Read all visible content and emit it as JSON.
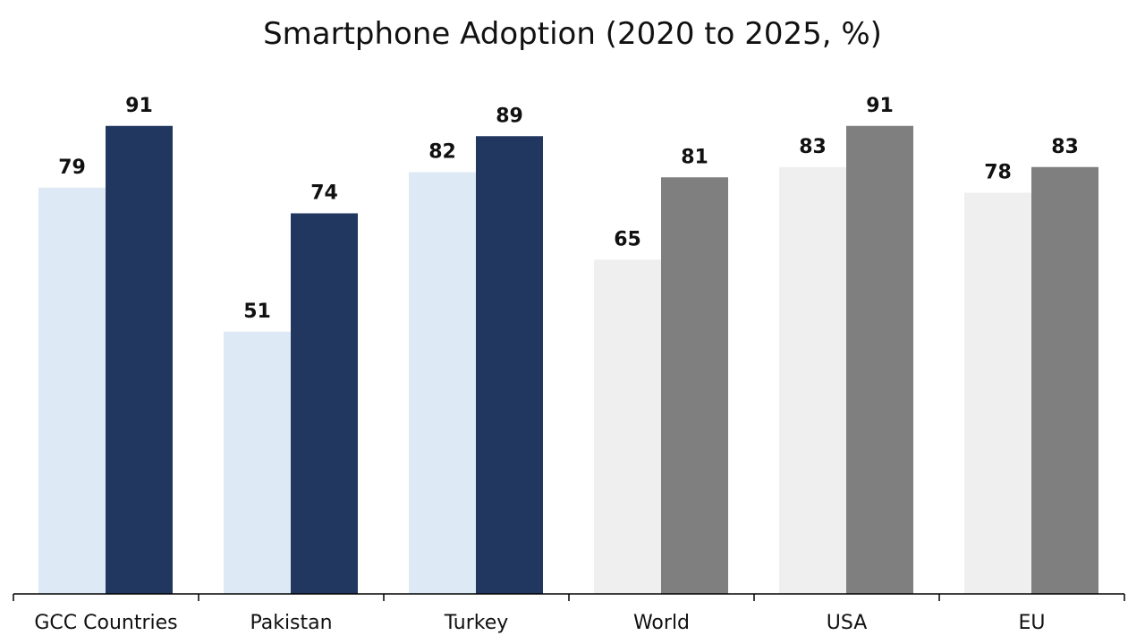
{
  "chart_data": {
    "type": "bar",
    "title": "Smartphone Adoption (2020 to 2025, %)",
    "xlabel": "",
    "ylabel": "",
    "ylim": [
      0,
      100
    ],
    "grid": false,
    "legend": "none",
    "categories": [
      "GCC Countries",
      "Pakistan",
      "Turkey",
      "World",
      "USA",
      "EU"
    ],
    "series": [
      {
        "values": [
          79,
          51,
          82,
          65,
          83,
          78
        ]
      },
      {
        "values": [
          91,
          74,
          89,
          81,
          91,
          83
        ]
      }
    ],
    "colors": {
      "highlight_2020": "#dde9f5",
      "highlight_2025": "#21375f",
      "benchmark_2020": "#efefef",
      "benchmark_2025": "#7f7f7f",
      "axis": "#000000"
    },
    "highlight_categories": [
      "GCC Countries",
      "Pakistan",
      "Turkey"
    ]
  }
}
